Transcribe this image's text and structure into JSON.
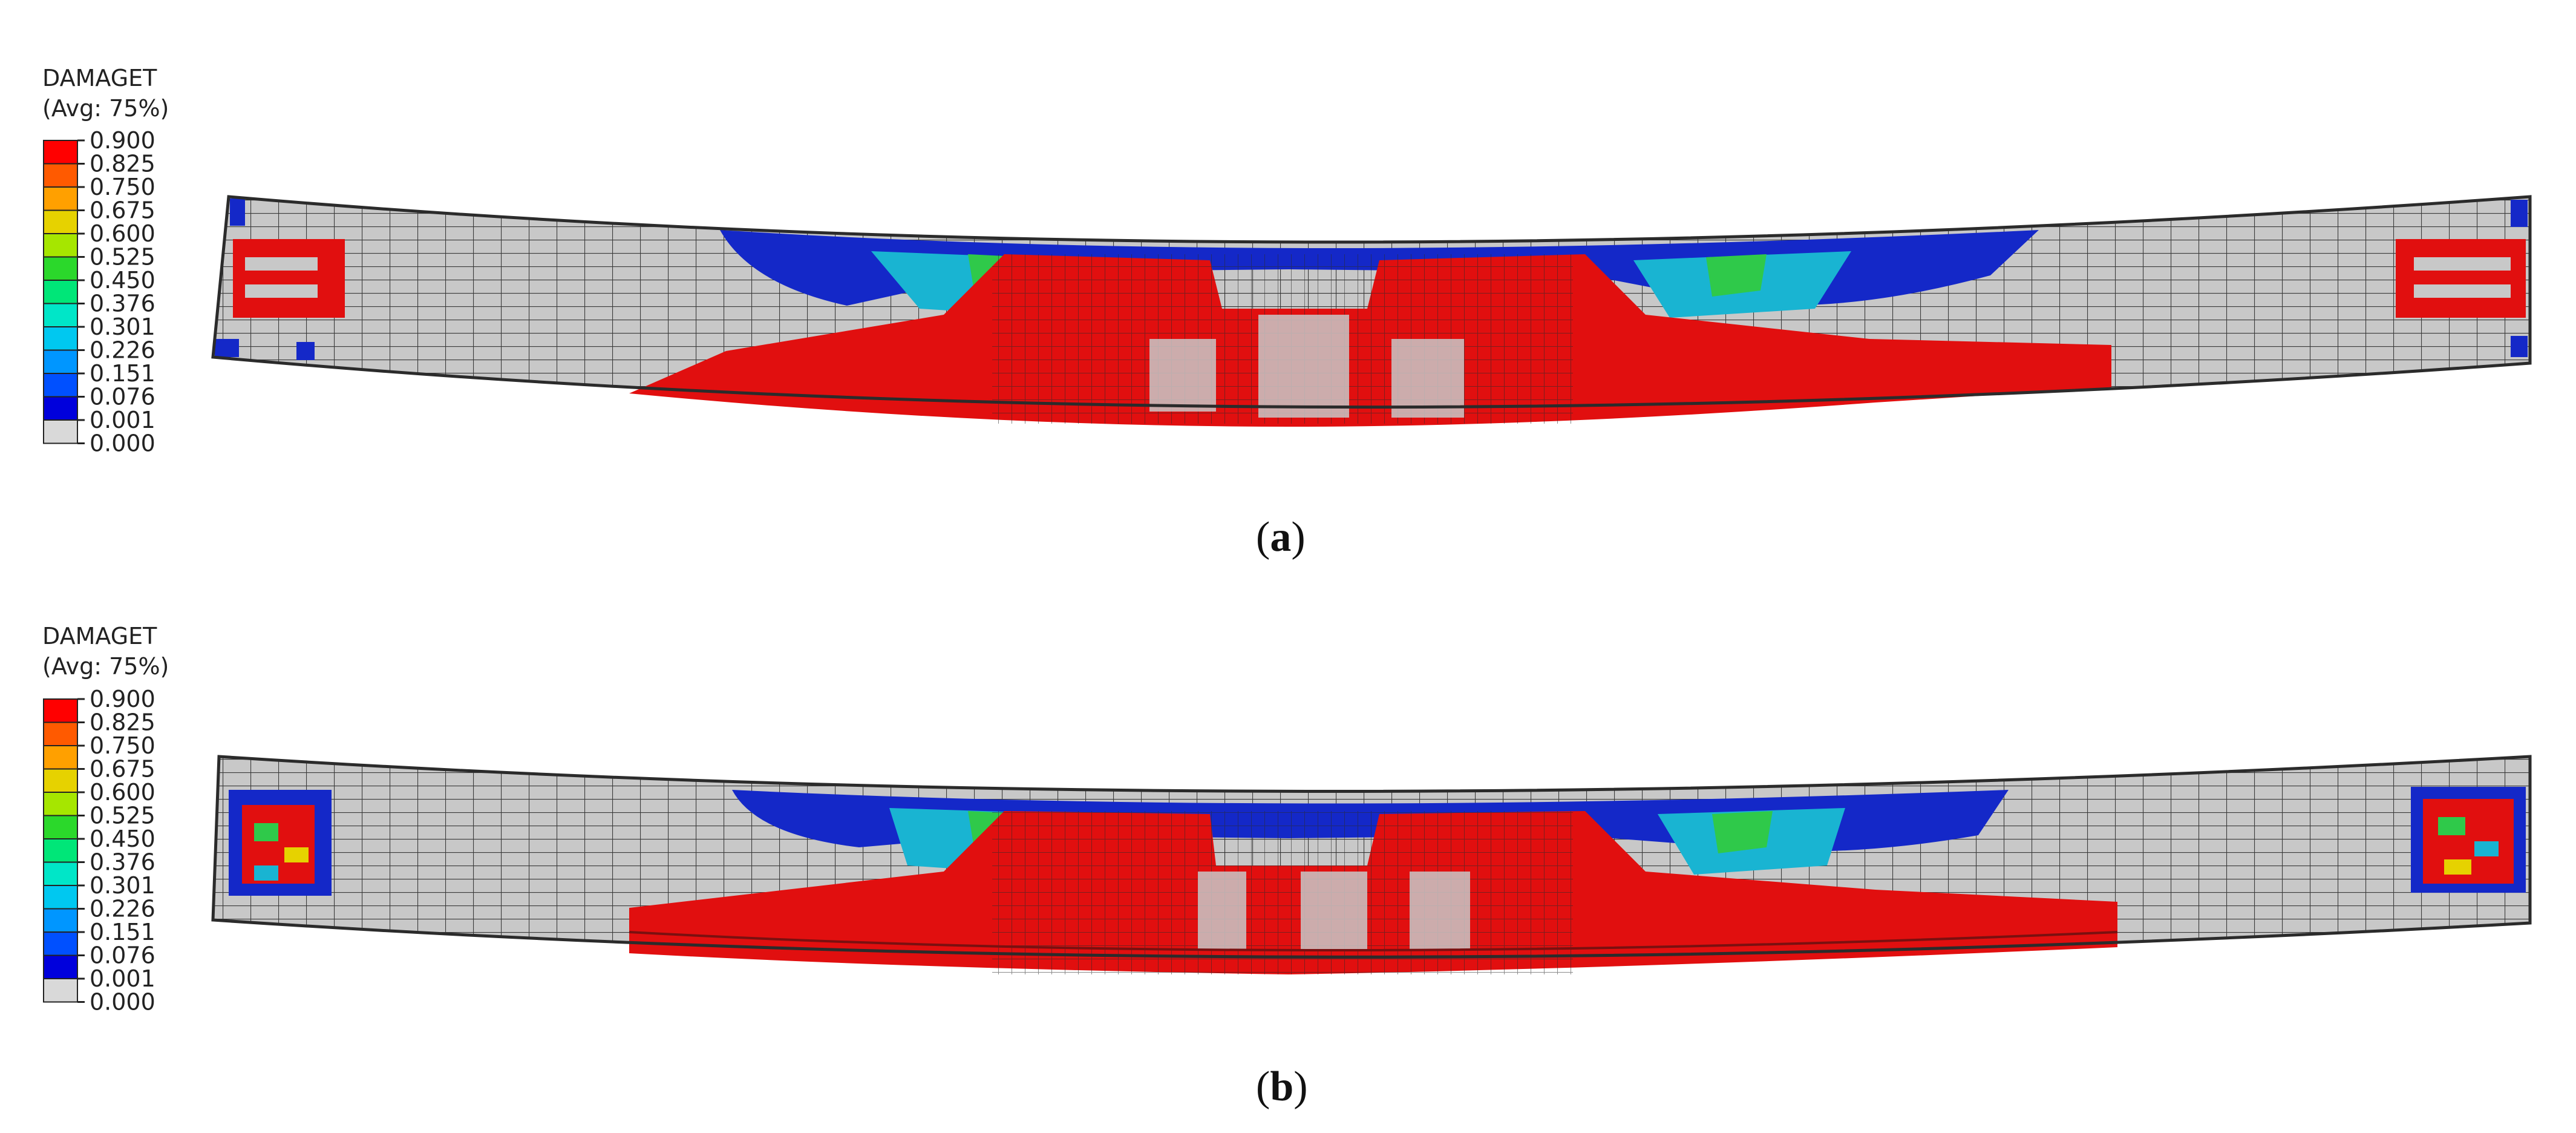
{
  "panels": [
    {
      "id": "a",
      "legend_title": "DAMAGET",
      "legend_subtitle": "(Avg: 75%)",
      "caption_open": "(",
      "caption_letter": "a",
      "caption_close": ")"
    },
    {
      "id": "b",
      "legend_title": "DAMAGET",
      "legend_subtitle": "(Avg: 75%)",
      "caption_open": "(",
      "caption_letter": "b",
      "caption_close": ")"
    }
  ],
  "legend": {
    "values": [
      "0.900",
      "0.825",
      "0.750",
      "0.675",
      "0.600",
      "0.525",
      "0.450",
      "0.376",
      "0.301",
      "0.226",
      "0.151",
      "0.076",
      "0.001",
      "0.000"
    ],
    "colors": [
      "#ff0000",
      "#ff5a00",
      "#ffa000",
      "#e6d200",
      "#a6e600",
      "#2bd82b",
      "#00e678",
      "#00e6c8",
      "#00c8f0",
      "#0096ff",
      "#0050ff",
      "#0000dc",
      "#d9d9d9"
    ]
  },
  "colors": {
    "damage_high": "#e10f0f",
    "damage_mid_green": "#2fc94a",
    "damage_cyan": "#19b4d2",
    "damage_low_blue": "#1428c8",
    "undamaged": "#c8c8c8",
    "mesh_line": "#333333"
  }
}
